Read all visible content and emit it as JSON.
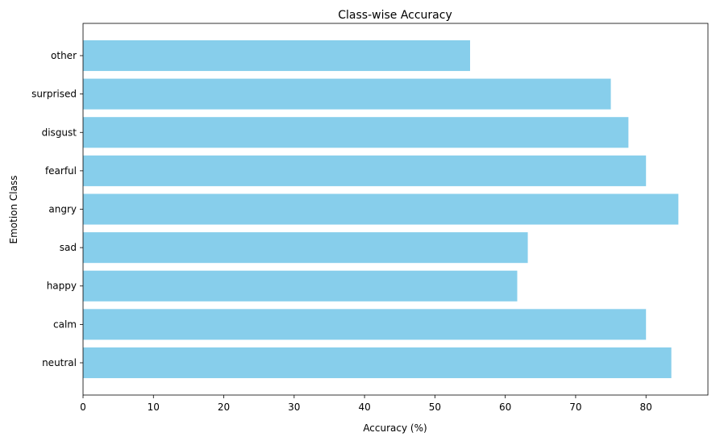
{
  "chart_data": {
    "type": "bar",
    "orientation": "horizontal",
    "title": "Class-wise Accuracy",
    "xlabel": "Accuracy (%)",
    "ylabel": "Emotion Class",
    "categories": [
      "neutral",
      "calm",
      "happy",
      "sad",
      "angry",
      "fearful",
      "disgust",
      "surprised",
      "other"
    ],
    "values": [
      83.6,
      80.0,
      61.7,
      63.2,
      84.6,
      80.0,
      77.5,
      75.0,
      55.0
    ],
    "xlim": [
      0,
      88.8
    ],
    "xticks": [
      0,
      10,
      20,
      30,
      40,
      50,
      60,
      70,
      80
    ],
    "bar_color": "#87CEEB",
    "grid": false,
    "legend": "none"
  }
}
